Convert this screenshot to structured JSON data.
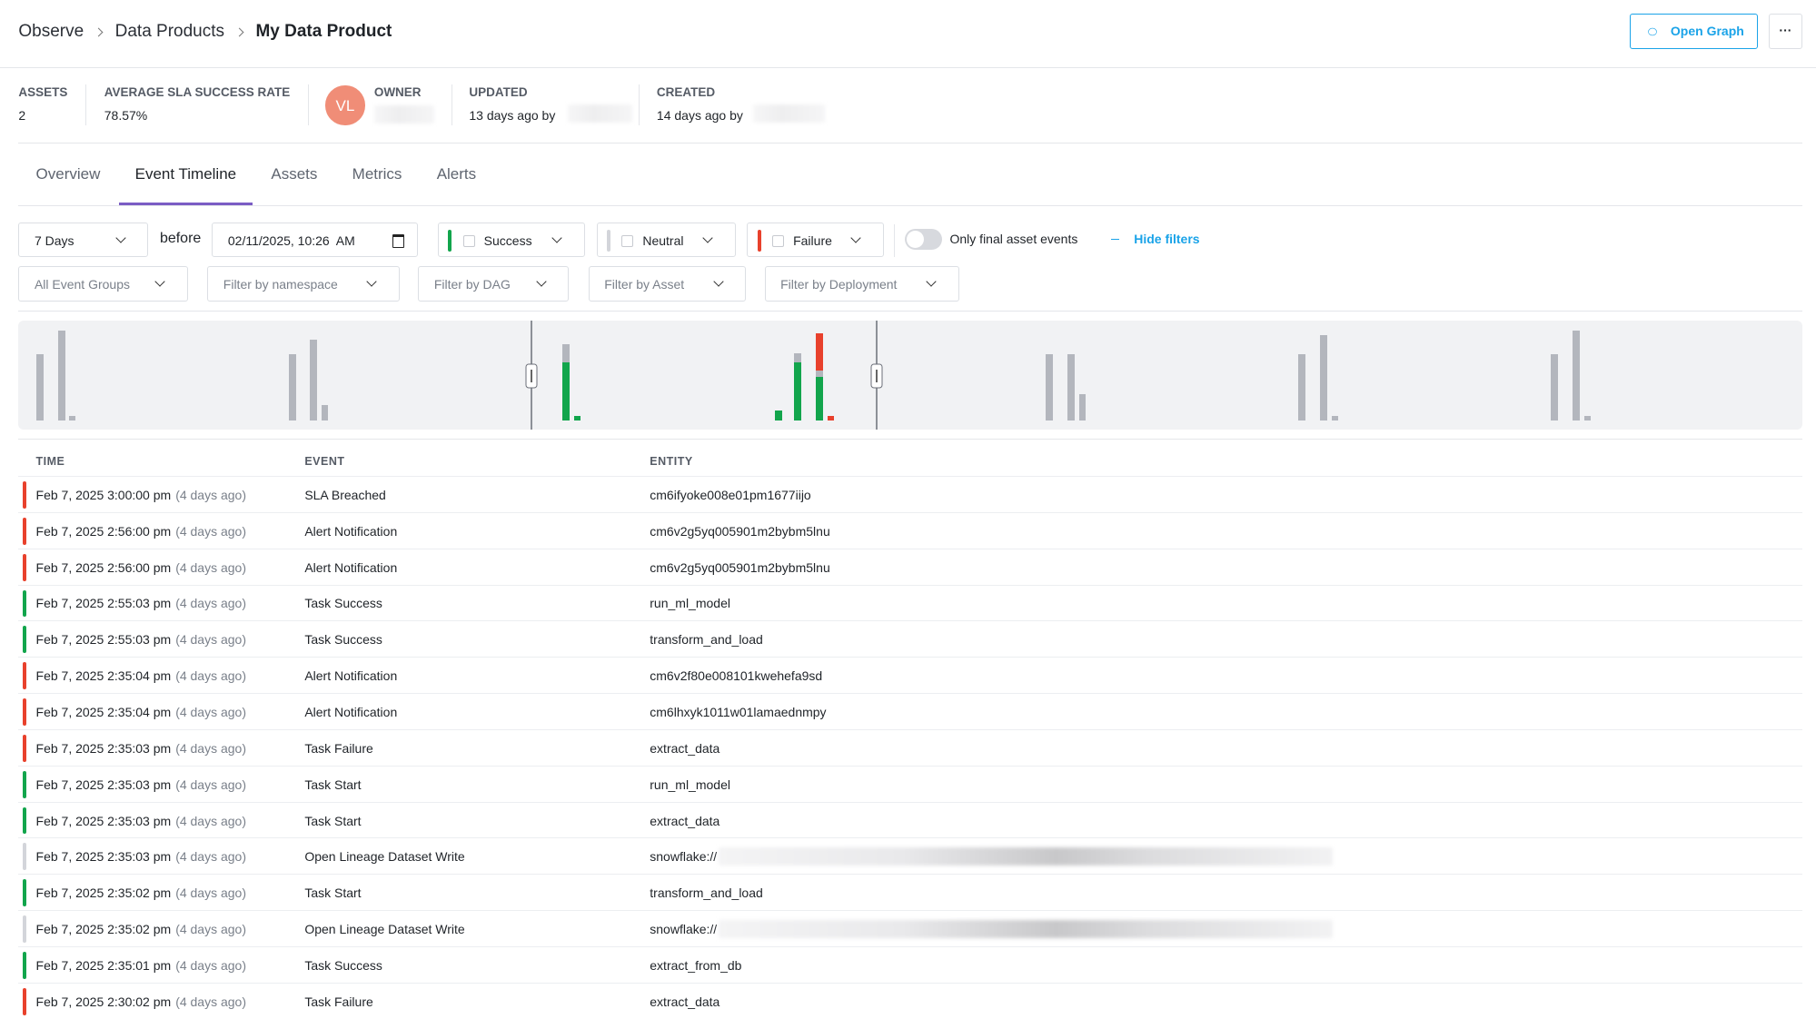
{
  "breadcrumb": [
    "Observe",
    "Data Products",
    "My Data Product"
  ],
  "header_actions": {
    "open_graph": "Open Graph",
    "more": "···"
  },
  "stats": [
    {
      "label": "ASSETS",
      "value": "2"
    },
    {
      "label": "AVERAGE SLA SUCCESS RATE",
      "value": "78.57%"
    },
    {
      "label": "OWNER",
      "initials": "VL"
    },
    {
      "label": "UPDATED",
      "value": "13 days ago by"
    },
    {
      "label": "CREATED",
      "value": "14 days ago by"
    }
  ],
  "tabs": [
    {
      "label": "Overview"
    },
    {
      "label": "Event Timeline",
      "active": true
    },
    {
      "label": "Assets"
    },
    {
      "label": "Metrics"
    },
    {
      "label": "Alerts"
    }
  ],
  "filters": {
    "range": "7 Days",
    "before": "before",
    "date": "02/11/2025, 10:26  AM",
    "statuses": [
      {
        "label": "Success",
        "color": "#12a54c"
      },
      {
        "label": "Neutral",
        "color": "#d3d5da"
      },
      {
        "label": "Failure",
        "color": "#e8412c"
      }
    ],
    "toggle": "Only final asset events",
    "hide_filters": "Hide filters",
    "dropdowns": [
      "All Event Groups",
      "Filter by namespace",
      "Filter by DAG",
      "Filter by Asset",
      "Filter by Deployment"
    ]
  },
  "table": {
    "columns": [
      "TIME",
      "EVENT",
      "ENTITY"
    ],
    "rows": [
      {
        "status": "Failure",
        "time": "Feb 7, 2025 3:00:00 pm",
        "ago": "(4 days ago)",
        "event": "SLA Breached",
        "entity": "cm6ifyoke008e01pm1677iijo"
      },
      {
        "status": "Failure",
        "time": "Feb 7, 2025 2:56:00 pm",
        "ago": "(4 days ago)",
        "event": "Alert Notification",
        "entity": "cm6v2g5yq005901m2bybm5lnu"
      },
      {
        "status": "Failure",
        "time": "Feb 7, 2025 2:56:00 pm",
        "ago": "(4 days ago)",
        "event": "Alert Notification",
        "entity": "cm6v2g5yq005901m2bybm5lnu"
      },
      {
        "status": "Success",
        "time": "Feb 7, 2025 2:55:03 pm",
        "ago": "(4 days ago)",
        "event": "Task Success",
        "entity": "run_ml_model"
      },
      {
        "status": "Success",
        "time": "Feb 7, 2025 2:55:03 pm",
        "ago": "(4 days ago)",
        "event": "Task Success",
        "entity": "transform_and_load"
      },
      {
        "status": "Failure",
        "time": "Feb 7, 2025 2:35:04 pm",
        "ago": "(4 days ago)",
        "event": "Alert Notification",
        "entity": "cm6v2f80e008101kwehefa9sd"
      },
      {
        "status": "Failure",
        "time": "Feb 7, 2025 2:35:04 pm",
        "ago": "(4 days ago)",
        "event": "Alert Notification",
        "entity": "cm6lhxyk1011w01lamaednmpy"
      },
      {
        "status": "Failure",
        "time": "Feb 7, 2025 2:35:03 pm",
        "ago": "(4 days ago)",
        "event": "Task Failure",
        "entity": "extract_data"
      },
      {
        "status": "Success",
        "time": "Feb 7, 2025 2:35:03 pm",
        "ago": "(4 days ago)",
        "event": "Task Start",
        "entity": "run_ml_model"
      },
      {
        "status": "Success",
        "time": "Feb 7, 2025 2:35:03 pm",
        "ago": "(4 days ago)",
        "event": "Task Start",
        "entity": "extract_data"
      },
      {
        "status": "Neutral",
        "time": "Feb 7, 2025 2:35:03 pm",
        "ago": "(4 days ago)",
        "event": "Open Lineage Dataset Write",
        "entity": "snowflake://",
        "redacted": true
      },
      {
        "status": "Success",
        "time": "Feb 7, 2025 2:35:02 pm",
        "ago": "(4 days ago)",
        "event": "Task Start",
        "entity": "transform_and_load"
      },
      {
        "status": "Neutral",
        "time": "Feb 7, 2025 2:35:02 pm",
        "ago": "(4 days ago)",
        "event": "Open Lineage Dataset Write",
        "entity": "snowflake://",
        "redacted": true
      },
      {
        "status": "Success",
        "time": "Feb 7, 2025 2:35:01 pm",
        "ago": "(4 days ago)",
        "event": "Task Success",
        "entity": "extract_from_db"
      },
      {
        "status": "Failure",
        "time": "Feb 7, 2025 2:30:02 pm",
        "ago": "(4 days ago)",
        "event": "Task Failure",
        "entity": "extract_data"
      }
    ]
  }
}
